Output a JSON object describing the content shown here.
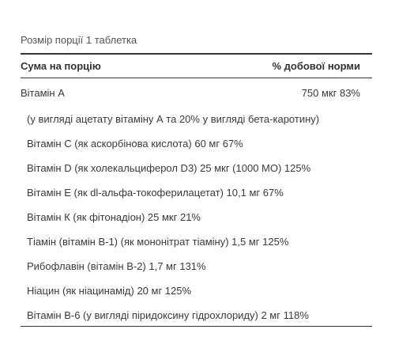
{
  "serving": "Розмір порції 1 таблетка",
  "table": {
    "header_left": "Сума на порцію",
    "header_right": "% добової норми",
    "first_row": {
      "name": "Вітамін A",
      "value": "750 мкг 83%"
    },
    "rows": [
      "(у вигляді ацетату вітаміну А та 20% у вигляді бета-каротину)",
      "Вітамін C (як аскорбінова кислота) 60 мг 67%",
      "Вітамін D (як холекальциферол D3) 25 мкг (1000 МО) 125%",
      "Вітамін E (як dl-альфа-токоферилацетат) 10,1 мг 67%",
      "Вітамін К (як фітонадіон) 25 мкг 21%",
      "Тіамін (вітамін B-1) (як мононітрат тіаміну) 1,5 мг 125%",
      "Рибофлавін (вітамін B-2) 1,7 мг 131%",
      "Ніацин (як ніацинамід) 20 мг 125%",
      "Вітамін B-6 (у вигляді піридоксину гідрохлориду) 2 мг 118%"
    ]
  }
}
